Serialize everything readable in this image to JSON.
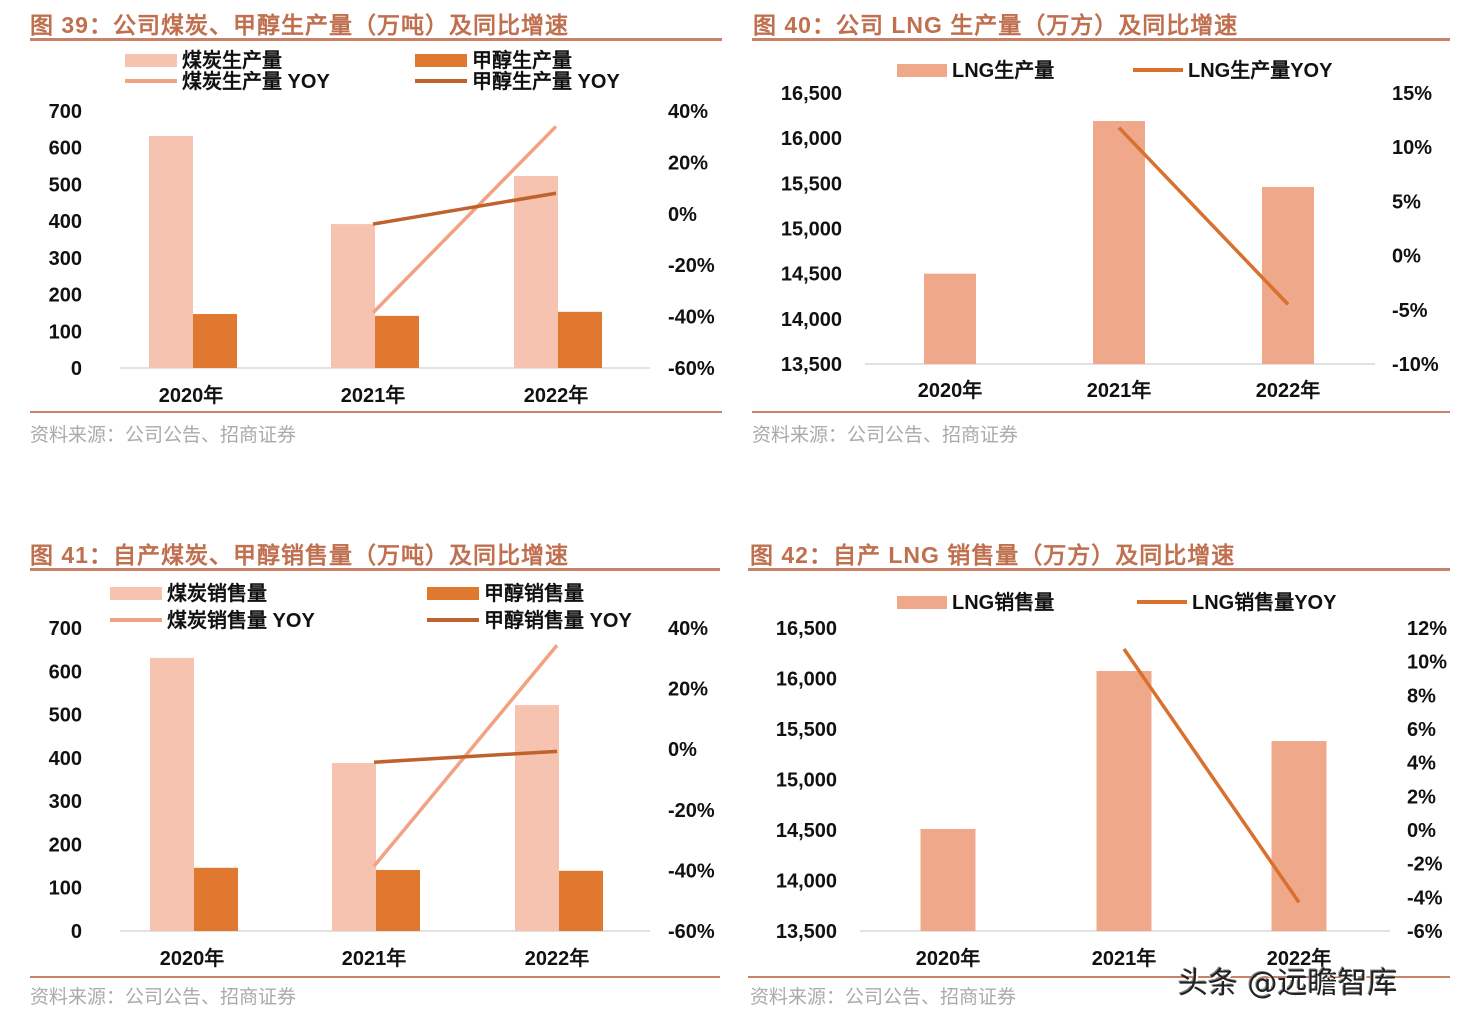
{
  "colors": {
    "title": "#c0704f",
    "rule": "#c8826a",
    "coal_bar": "#f5c3b0",
    "methanol_bar": "#e0782f",
    "coal_yoy": "#f2a283",
    "methanol_yoy": "#c0622c",
    "lng_bar": "#f0a88a",
    "lng_yoy": "#d8702e"
  },
  "watermark": "头条 @远瞻智库",
  "chart_data": [
    {
      "id": "fig39",
      "type": "bar+line",
      "title": "图 39：公司煤炭、甲醇生产量（万吨）及同比增速",
      "source": "资料来源：公司公告、招商证券",
      "categories": [
        "2020年",
        "2021年",
        "2022年"
      ],
      "left_axis": {
        "ylim": [
          0,
          700
        ],
        "ticks": [
          "700",
          "600",
          "500",
          "400",
          "300",
          "200",
          "100",
          "0"
        ]
      },
      "right_axis": {
        "ylim": [
          -60,
          40
        ],
        "unit": "%",
        "ticks": [
          "40%",
          "20%",
          "0%",
          "-20%",
          "-40%",
          "-60%"
        ]
      },
      "bars": [
        {
          "name": "煤炭生产量",
          "color": "#f5c3b0",
          "values": [
            632,
            392,
            523
          ]
        },
        {
          "name": "甲醇生产量",
          "color": "#e0782f",
          "values": [
            147,
            142,
            153
          ]
        }
      ],
      "lines": [
        {
          "name": "煤炭生产量 YOY",
          "color": "#f2a283",
          "values": [
            null,
            -38.5,
            34
          ]
        },
        {
          "name": "甲醇生产量 YOY",
          "color": "#c0622c",
          "values": [
            null,
            -4,
            8
          ]
        }
      ]
    },
    {
      "id": "fig40",
      "type": "bar+line",
      "title": "图 40：公司 LNG 生产量（万方）及同比增速",
      "source": "资料来源：公司公告、招商证券",
      "categories": [
        "2020年",
        "2021年",
        "2022年"
      ],
      "left_axis": {
        "ylim": [
          13500,
          16500
        ],
        "ticks": [
          "16,500",
          "16,000",
          "15,500",
          "15,000",
          "14,500",
          "14,000",
          "13,500"
        ]
      },
      "right_axis": {
        "ylim": [
          -10,
          15
        ],
        "unit": "%",
        "ticks": [
          "15%",
          "10%",
          "5%",
          "0%",
          "-5%",
          "-10%"
        ]
      },
      "bars": [
        {
          "name": "LNG生产量",
          "color": "#f0a88a",
          "values": [
            14500,
            16190,
            15460
          ]
        }
      ],
      "lines": [
        {
          "name": "LNG生产量YOY",
          "color": "#d8702e",
          "values": [
            null,
            11.8,
            -4.5
          ]
        }
      ]
    },
    {
      "id": "fig41",
      "type": "bar+line",
      "title": "图 41：自产煤炭、甲醇销售量（万吨）及同比增速",
      "source": "资料来源：公司公告、招商证券",
      "categories": [
        "2020年",
        "2021年",
        "2022年"
      ],
      "left_axis": {
        "ylim": [
          0,
          700
        ],
        "ticks": [
          "700",
          "600",
          "500",
          "400",
          "300",
          "200",
          "100",
          "0"
        ]
      },
      "right_axis": {
        "ylim": [
          -60,
          40
        ],
        "unit": "%",
        "ticks": [
          "40%",
          "20%",
          "0%",
          "-20%",
          "-40%",
          "-60%"
        ]
      },
      "bars": [
        {
          "name": "煤炭销售量",
          "color": "#f5c3b0",
          "values": [
            631,
            388,
            522
          ]
        },
        {
          "name": "甲醇销售量",
          "color": "#e0782f",
          "values": [
            146,
            141,
            139
          ]
        }
      ],
      "lines": [
        {
          "name": "煤炭销售量 YOY",
          "color": "#f2a283",
          "values": [
            null,
            -38.6,
            34.3
          ]
        },
        {
          "name": "甲醇销售量 YOY",
          "color": "#c0622c",
          "values": [
            null,
            -4.3,
            -0.7
          ]
        }
      ]
    },
    {
      "id": "fig42",
      "type": "bar+line",
      "title": "图 42：自产 LNG 销售量（万方）及同比增速",
      "source": "资料来源：公司公告、招商证券",
      "categories": [
        "2020年",
        "2021年",
        "2022年"
      ],
      "left_axis": {
        "ylim": [
          13500,
          16500
        ],
        "ticks": [
          "16,500",
          "16,000",
          "15,500",
          "15,000",
          "14,500",
          "14,000",
          "13,500"
        ]
      },
      "right_axis": {
        "ylim": [
          -6,
          12
        ],
        "unit": "%",
        "ticks": [
          "12%",
          "10%",
          "8%",
          "6%",
          "4%",
          "2%",
          "0%",
          "-2%",
          "-4%",
          "-6%"
        ]
      },
      "bars": [
        {
          "name": "LNG销售量",
          "color": "#f0a88a",
          "values": [
            14510,
            16074,
            15381
          ]
        }
      ],
      "lines": [
        {
          "name": "LNG销售量YOY",
          "color": "#d8702e",
          "values": [
            null,
            10.75,
            -4.3
          ]
        }
      ]
    }
  ]
}
